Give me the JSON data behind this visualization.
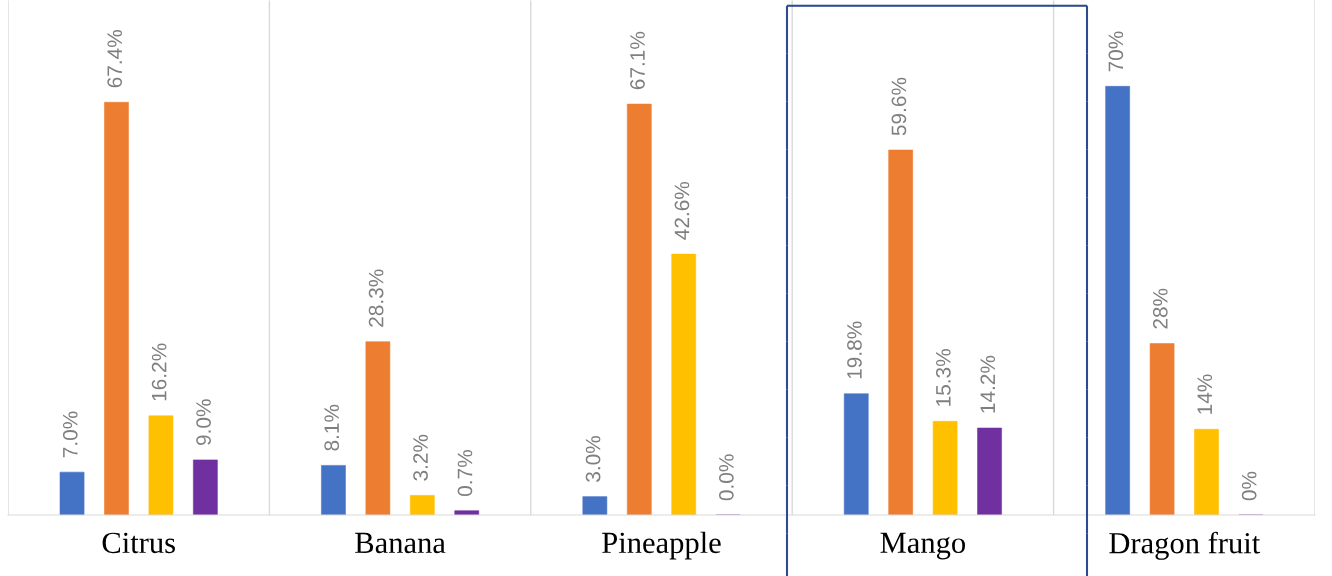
{
  "chart_data": {
    "type": "bar",
    "categories": [
      "Citrus",
      "Banana",
      "Pineapple",
      "Mango",
      "Dragon fruit"
    ],
    "series": [
      {
        "color": "#4472c4",
        "values": [
          7.0,
          8.1,
          3.0,
          19.8,
          70
        ],
        "value_labels": [
          "7.0%",
          "8.1%",
          "3.0%",
          "19.8%",
          "70%"
        ]
      },
      {
        "color": "#ed7d31",
        "values": [
          67.4,
          28.3,
          67.1,
          59.6,
          28
        ],
        "value_labels": [
          "67.4%",
          "28.3%",
          "67.1%",
          "59.6%",
          "28%"
        ]
      },
      {
        "color": "#ffc000",
        "values": [
          16.2,
          3.2,
          42.6,
          15.3,
          14
        ],
        "value_labels": [
          "16.2%",
          "3.2%",
          "42.6%",
          "15.3%",
          "14%"
        ]
      },
      {
        "color": "#7030a0",
        "values": [
          9.0,
          0.7,
          0.0,
          14.2,
          0
        ],
        "value_labels": [
          "9.0%",
          "0.7%",
          "0.0%",
          "14.2%",
          "0%"
        ]
      }
    ],
    "grid": "x",
    "legend": false,
    "tick_labels": "x"
  }
}
